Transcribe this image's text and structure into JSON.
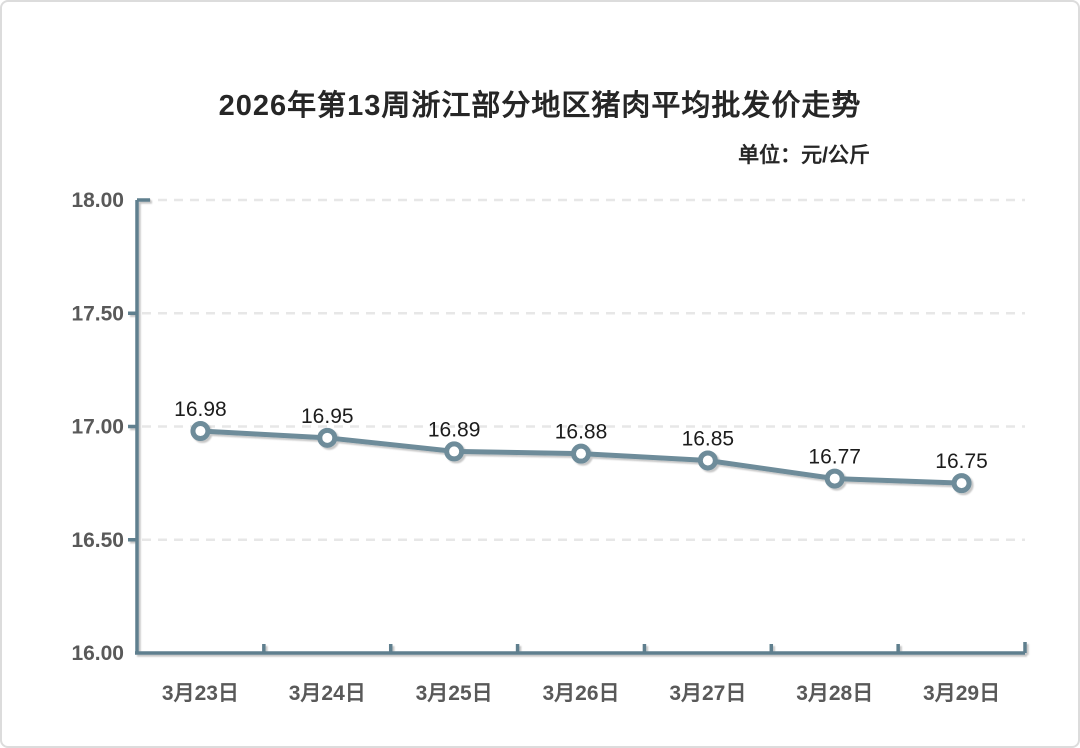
{
  "window": {
    "background": "#ffffff",
    "border_color": "#dcdcdc"
  },
  "chart_data": {
    "type": "line",
    "title": "2026年第13周浙江部分地区猪肉平均批发价走势",
    "unit_label": "单位：元/公斤",
    "categories": [
      "3月23日",
      "3月24日",
      "3月25日",
      "3月26日",
      "3月27日",
      "3月28日",
      "3月29日"
    ],
    "series": [
      {
        "name": "猪肉平均批发价",
        "values": [
          16.98,
          16.95,
          16.89,
          16.88,
          16.85,
          16.77,
          16.75
        ]
      }
    ],
    "data_labels": [
      "16.98",
      "16.95",
      "16.89",
      "16.88",
      "16.85",
      "16.77",
      "16.75"
    ],
    "ylim": [
      16.0,
      18.0
    ],
    "ytick_interval": 0.5,
    "ytick_labels": [
      "16.00",
      "16.50",
      "17.00",
      "17.50",
      "18.00"
    ],
    "grid": {
      "horizontal": true,
      "style": "dashed"
    },
    "legend": "none",
    "colors": {
      "series_line": "#6e8c9a",
      "marker_fill": "#ffffff",
      "marker_stroke": "#6e8c9a",
      "axis": "#5f7f8e",
      "gridline": "#e7e7e7",
      "axis_tick_label": "#595959",
      "data_label": "#1c1c1c",
      "title": "#262626"
    }
  }
}
